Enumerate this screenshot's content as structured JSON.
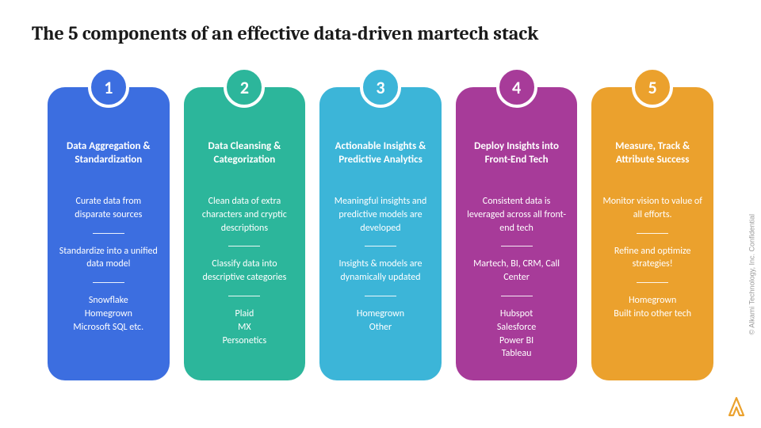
{
  "title": "The 5 components of an effective data-driven martech stack",
  "footer": "© Alkami Technology, Inc. Confidential",
  "cards": [
    {
      "num": "1",
      "color": "#3c6ee0",
      "badge_color": "#3c6ee0",
      "title": "Data Aggregation & Standardization",
      "sections": [
        "Curate data from disparate sources",
        "Standardize into a unified data model",
        "Snowflake\nHomegrown\nMicrosoft SQL etc."
      ]
    },
    {
      "num": "2",
      "color": "#2cb69b",
      "badge_color": "#2cb69b",
      "title": "Data Cleansing & Categorization",
      "sections": [
        "Clean data of extra characters and cryptic descriptions",
        "Classify data into descriptive categories",
        "Plaid\nMX\nPersonetics"
      ]
    },
    {
      "num": "3",
      "color": "#3cb5d8",
      "badge_color": "#3cb5d8",
      "title": "Actionable Insights & Predictive Analytics",
      "sections": [
        "Meaningful insights and predictive models are developed",
        "Insights & models are dynamically updated",
        "Homegrown\nOther"
      ]
    },
    {
      "num": "4",
      "color": "#a73b99",
      "badge_color": "#a73b99",
      "title": "Deploy Insights into\nFront-End Tech",
      "sections": [
        "Consistent data is leveraged across all front-end tech",
        "Martech, BI, CRM, Call Center",
        "Hubspot\nSalesforce\nPower BI\nTableau"
      ]
    },
    {
      "num": "5",
      "color": "#eba12d",
      "badge_color": "#eba12d",
      "title": "Measure, Track & Attribute Success",
      "sections": [
        "Monitor vision to value of all efforts.",
        "Refine and optimize strategies!",
        "Homegrown\nBuilt into other tech"
      ]
    }
  ],
  "logo_color": "#eba12d"
}
